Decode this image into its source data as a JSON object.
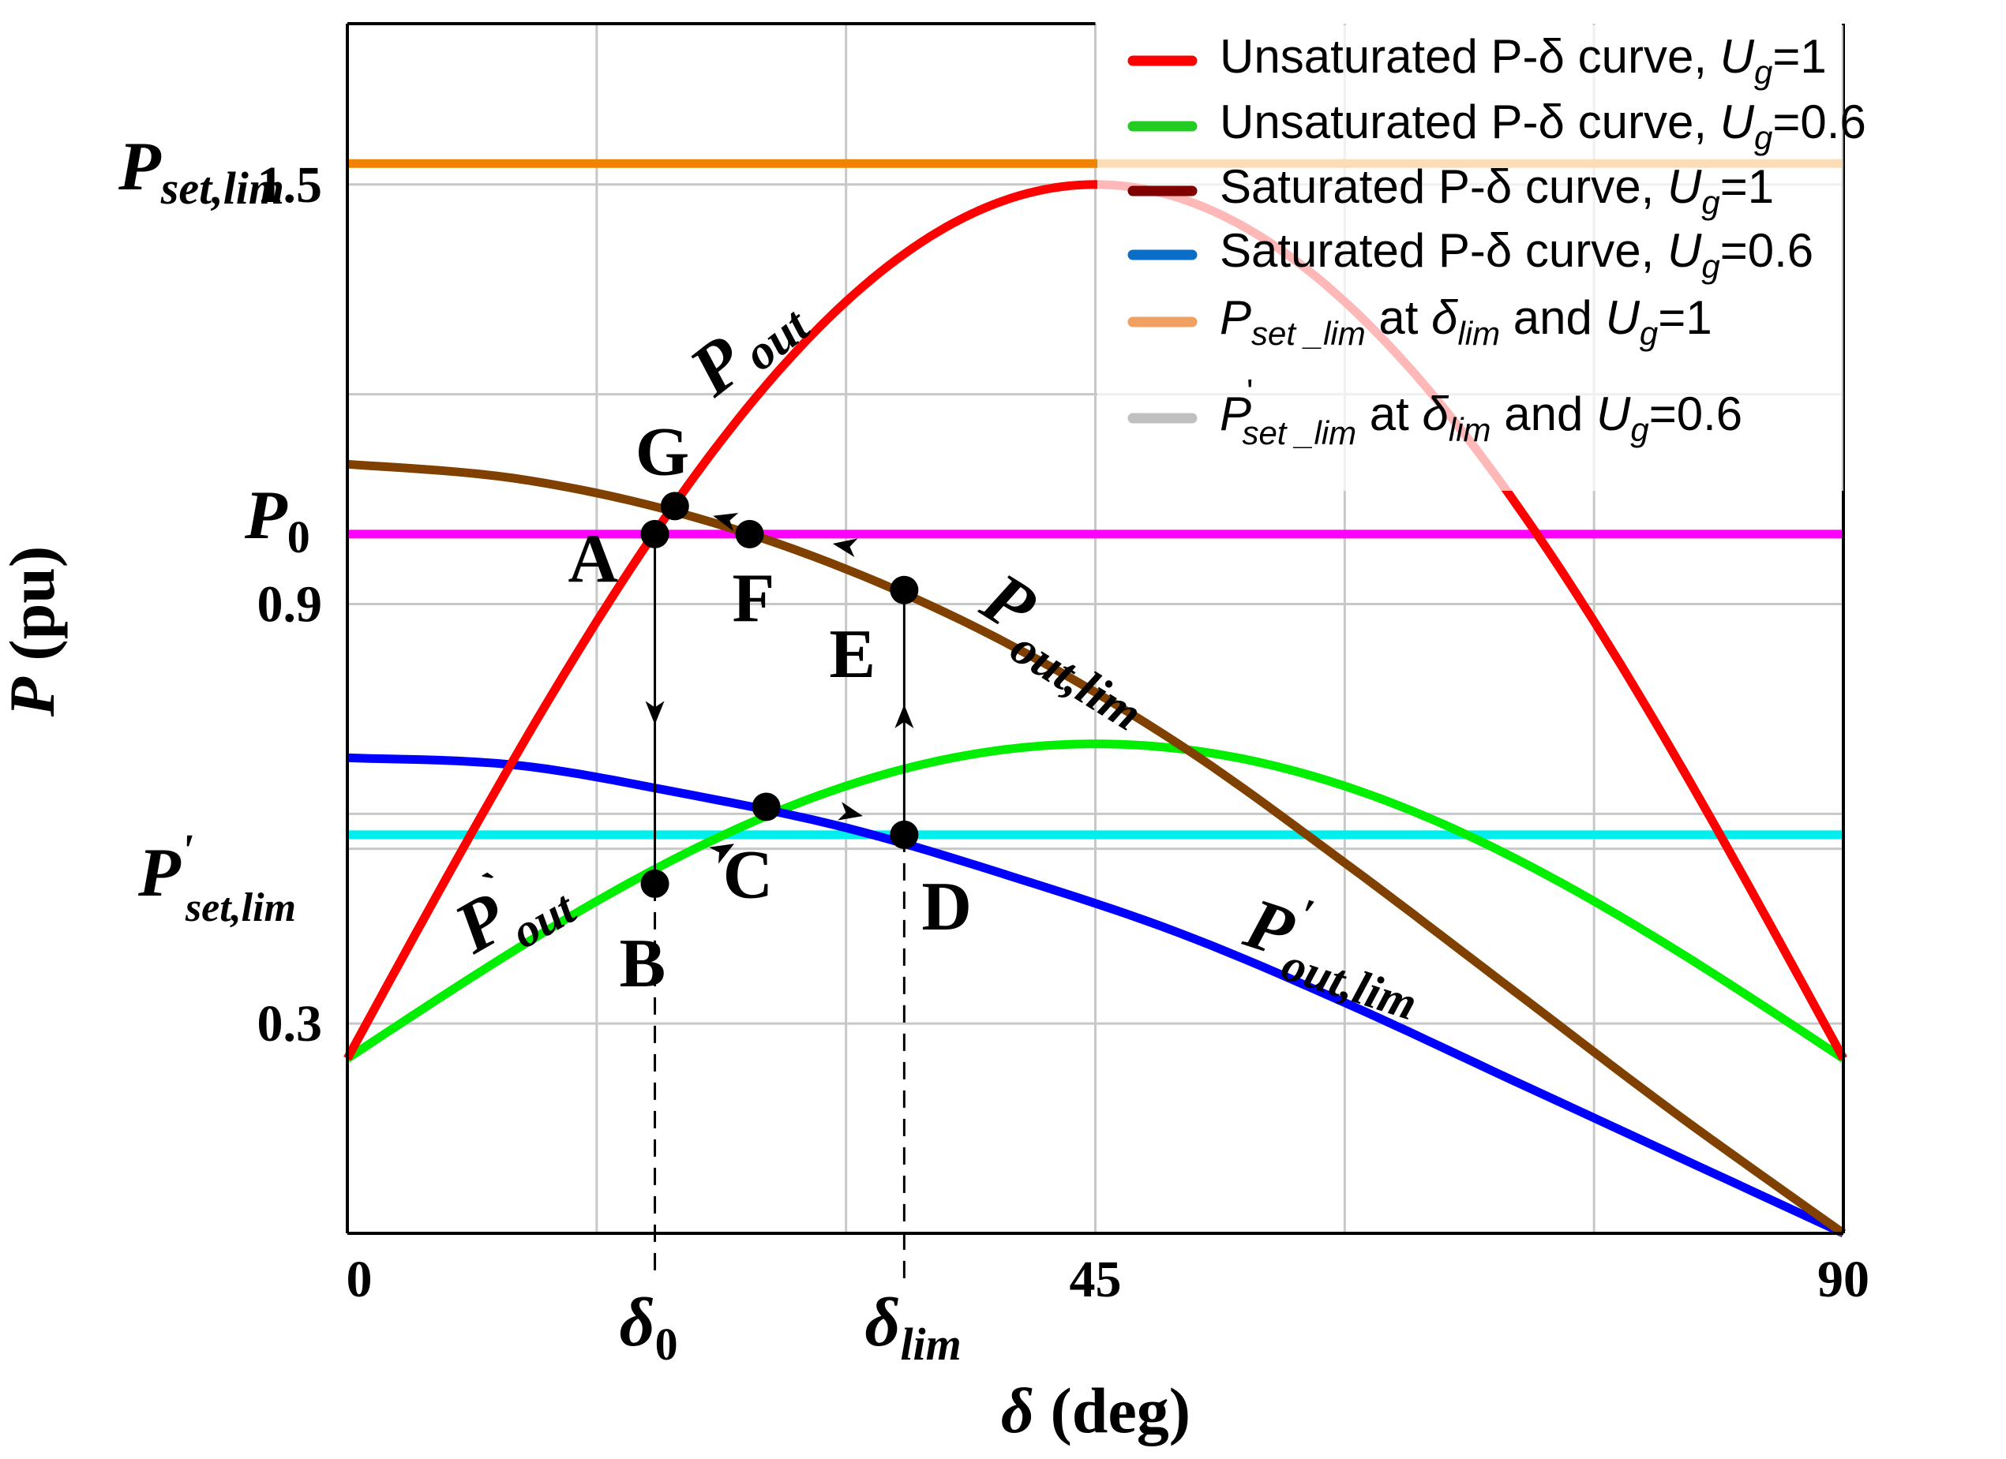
{
  "chart_data": {
    "type": "line",
    "xlabel": "δ (deg)",
    "ylabel": "P (pu)",
    "xlim": [
      0,
      90
    ],
    "ylim": [
      0,
      1.73
    ],
    "grid": true,
    "legend_position": "top-right",
    "x_ticks": [
      {
        "value": 0,
        "label": "0"
      },
      {
        "value": 45,
        "label": "45"
      },
      {
        "value": 90,
        "label": "90"
      }
    ],
    "y_ticks": [
      {
        "value": 0.3,
        "label": "0.3"
      },
      {
        "value": 0.9,
        "label": "0.9"
      },
      {
        "value": 1.5,
        "label": "1.5"
      }
    ],
    "special_y_labels": {
      "p_set_lim": {
        "main": "P",
        "sub": "set,lim",
        "value": 1.5
      },
      "p0": {
        "main": "P",
        "sub": "0",
        "value": 1.0
      },
      "p_set_lim_prime": {
        "main": "P",
        "sup": "'",
        "sub": "set,lim",
        "value": 0.57
      }
    },
    "special_x_labels": {
      "delta0": {
        "main": "δ",
        "sub": "0",
        "value": 18.5
      },
      "delta_lim": {
        "main": "δ",
        "sub": "lim",
        "value": 33.5
      }
    },
    "series": [
      {
        "name": "Unsaturated P-δ curve, Ug=1",
        "color": "#ff0000",
        "kind": "sine",
        "base": 0.25,
        "amp": 1.25
      },
      {
        "name": "Unsaturated P-δ curve, Ug=0.6",
        "color": "#00ee00",
        "kind": "sine",
        "base": 0.25,
        "amp": 0.45
      },
      {
        "name": "Saturated P-δ curve, Ug=1",
        "color": "#804000",
        "kind": "points",
        "x": [
          0,
          10,
          20,
          30,
          40,
          50,
          60,
          70,
          80,
          90
        ],
        "y": [
          1.1,
          1.08,
          1.03,
          0.95,
          0.84,
          0.7,
          0.53,
          0.35,
          0.17,
          0.0
        ]
      },
      {
        "name": "Saturated P-δ curve, Ug=0.6",
        "color": "#0000ff",
        "kind": "points",
        "x": [
          0,
          10,
          20,
          30,
          40,
          50,
          60,
          70,
          80,
          90
        ],
        "y": [
          0.68,
          0.67,
          0.63,
          0.58,
          0.51,
          0.43,
          0.33,
          0.22,
          0.11,
          0.0
        ]
      },
      {
        "name": "P_set_lim at δlim and Ug=1",
        "color": "#f08400",
        "kind": "hline",
        "y": 1.53
      },
      {
        "name": "P'_set_lim at δlim and Ug=0.6",
        "color": "#b8b8b8",
        "kind": "hline",
        "y": 0.57
      },
      {
        "name": "P0",
        "color": "#ff00ff",
        "kind": "hline",
        "y": 1.0
      },
      {
        "name": "P'set,lim",
        "color": "#00eeee",
        "kind": "hline",
        "y": 0.57
      }
    ],
    "legend": [
      {
        "text": "Unsaturated P-δ curve, ",
        "var": "U",
        "sub": "g",
        "val": "=1",
        "color": "#ff0000"
      },
      {
        "text": "Unsaturated P-δ curve, ",
        "var": "U",
        "sub": "g",
        "val": "=0.6",
        "color": "#22cc22"
      },
      {
        "text": "Saturated P-δ curve, ",
        "var": "U",
        "sub": "g",
        "val": "=1",
        "color": "#800000"
      },
      {
        "text": "Saturated P-δ curve, ",
        "var": "U",
        "sub": "g",
        "val": "=0.6",
        "color": "#0a6ec8"
      },
      {
        "pre_var": "P",
        "pre_sub": "set _lim",
        "mid": " at ",
        "mid_var": "δ",
        "mid_sub": "lim",
        "text2": " and ",
        "var": "U",
        "sub": "g",
        "val": "=1",
        "color": "#f0a060"
      },
      {
        "pre_var": "P",
        "pre_sup": "'",
        "pre_sub": "set _lim",
        "mid": " at ",
        "mid_var": "δ",
        "mid_sub": "lim",
        "text2": " and ",
        "var": "U",
        "sub": "g",
        "val": "=0.6",
        "color": "#c0c0c0"
      }
    ],
    "points": [
      {
        "label": "A",
        "x": 18.5,
        "y": 1.0
      },
      {
        "label": "B",
        "x": 18.5,
        "y": 0.5
      },
      {
        "label": "C",
        "x": 25.2,
        "y": 0.61
      },
      {
        "label": "D",
        "x": 33.5,
        "y": 0.57
      },
      {
        "label": "E",
        "x": 33.5,
        "y": 0.92
      },
      {
        "label": "F",
        "x": 24.2,
        "y": 1.0
      },
      {
        "label": "G",
        "x": 19.7,
        "y": 1.04
      }
    ],
    "curve_annotations": [
      {
        "main": "P",
        "sub": "out"
      },
      {
        "main": "P",
        "sub": "out,lim"
      },
      {
        "main": "P",
        "sup": "`",
        "sub": "out"
      },
      {
        "main": "P",
        "sup": "'",
        "sub": "out,lim"
      }
    ]
  }
}
